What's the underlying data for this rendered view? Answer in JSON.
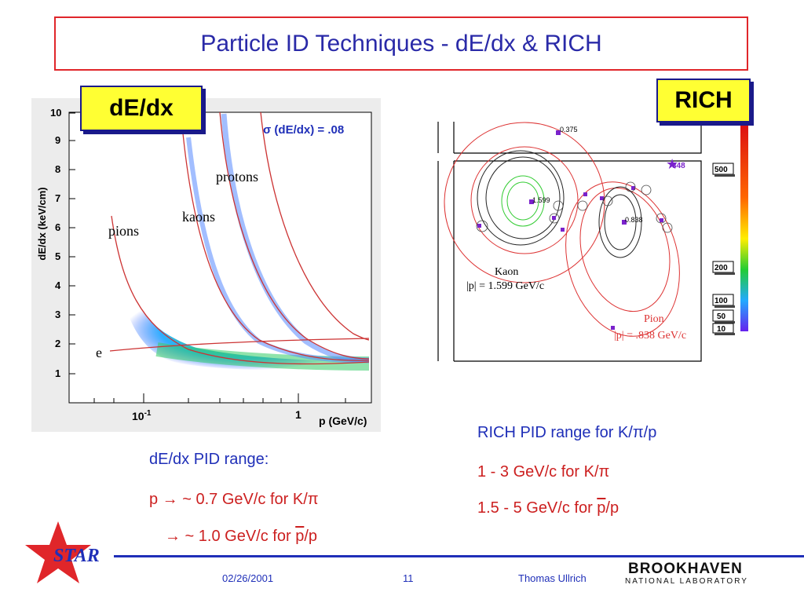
{
  "slide": {
    "title": "Particle ID Techniques - dE/dx & RICH",
    "dedx_tag": "dE/dx",
    "rich_tag": "RICH"
  },
  "dedx_plot": {
    "ylabel": "dE/dx  (keV/cm)",
    "xlabel": "p  (GeV/c)",
    "yticks": [
      "1",
      "2",
      "3",
      "4",
      "5",
      "6",
      "7",
      "8",
      "9",
      "10"
    ],
    "xticks": [
      "10^-1",
      "1"
    ],
    "xtick_label_base": "10",
    "xtick_label_exp": "-1",
    "xtick_label_one": "1",
    "sigma_label": "σ (dE/dx) = .08",
    "labels": {
      "protons": "protons",
      "kaons": "kaons",
      "pions": "pions",
      "e": "e"
    }
  },
  "rich_plot": {
    "kaon_label": "Kaon",
    "kaon_momentum": "|p| = 1.599 GeV/c",
    "pion_label": "Pion",
    "pion_momentum": "|p| = .838 GeV/c",
    "hit_labels": [
      "0.375",
      "348",
      "1.599",
      "0.838"
    ],
    "scale_labels": [
      "500",
      "200",
      "100",
      "50",
      "10"
    ]
  },
  "dedx_range": {
    "heading": "dE/dx PID range:",
    "line1": "p → ~ 0.7 GeV/c for K/π",
    "line2_prefix": "→ ~ 1.0 GeV/c for ",
    "line2_pbar": "p",
    "line2_suffix": "/p"
  },
  "rich_range": {
    "heading": "RICH PID range for K/π/p",
    "line1": "1 - 3 GeV/c for K/π",
    "line2_prefix": "1.5 - 5 GeV/c for ",
    "line2_pbar": "p",
    "line2_suffix": "/p"
  },
  "footer": {
    "logo_text": "STAR",
    "date": "02/26/2001",
    "page": "11",
    "author": "Thomas Ullrich",
    "lab_name": "BROOKHAVEN",
    "lab_sub": "NATIONAL LABORATORY"
  },
  "colors": {
    "title_border": "#e0262a",
    "title_text": "#2a2aa8",
    "accent_blue": "#1f2fb8",
    "accent_red": "#cc1f1f",
    "tag_yellow": "#ffff33"
  }
}
